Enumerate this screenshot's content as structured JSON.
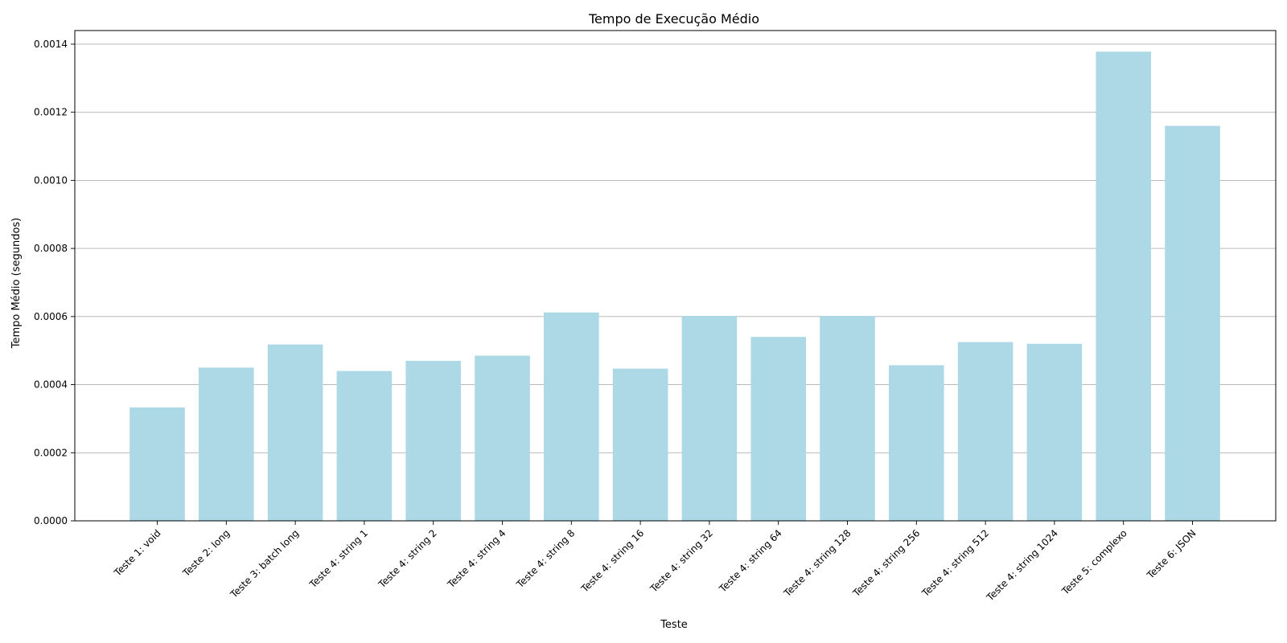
{
  "chart_data": {
    "type": "bar",
    "title": "Tempo de Execução Médio",
    "xlabel": "Teste",
    "ylabel": "Tempo Médio (segundos)",
    "categories": [
      "Teste 1: void",
      "Teste 2: long",
      "Teste 3: batch long",
      "Teste 4: string 1",
      "Teste 4: string 2",
      "Teste 4: string 4",
      "Teste 4: string 8",
      "Teste 4: string 16",
      "Teste 4: string 32",
      "Teste 4: string 64",
      "Teste 4: string 128",
      "Teste 4: string 256",
      "Teste 4: string 512",
      "Teste 4: string 1024",
      "Teste 5: complexo",
      "Teste 6: JSON"
    ],
    "values": [
      0.000333,
      0.00045,
      0.000518,
      0.00044,
      0.00047,
      0.000485,
      0.000612,
      0.000447,
      0.000602,
      0.00054,
      0.000602,
      0.000457,
      0.000525,
      0.00052,
      0.001378,
      0.00116
    ],
    "ylim": [
      0,
      0.00144
    ],
    "yticks": [
      0.0,
      0.0002,
      0.0004,
      0.0006,
      0.0008,
      0.001,
      0.0012,
      0.0014
    ],
    "ytick_labels": [
      "0.0000",
      "0.0002",
      "0.0004",
      "0.0006",
      "0.0008",
      "0.0010",
      "0.0012",
      "0.0014"
    ],
    "grid": "y-major",
    "bar_color": "#add8e6"
  }
}
